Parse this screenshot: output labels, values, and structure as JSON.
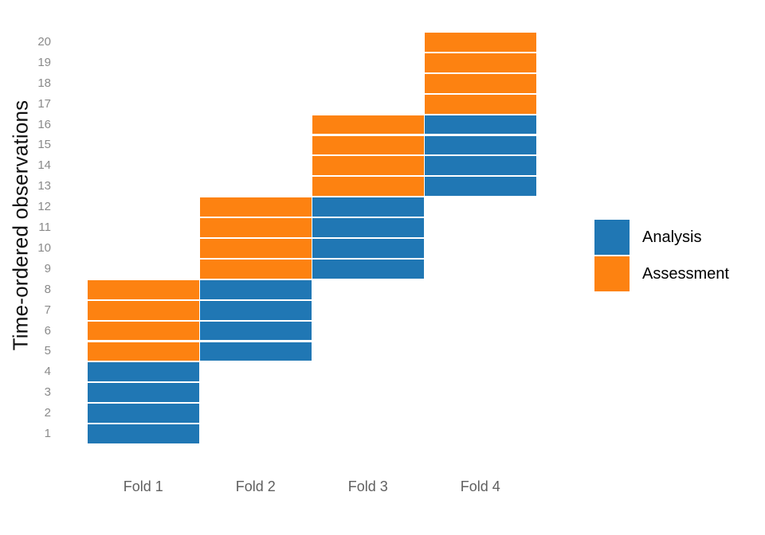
{
  "chart_data": {
    "type": "heatmap",
    "title": "",
    "xlabel": "",
    "ylabel": "Time-ordered observations",
    "categories": [
      "Fold 1",
      "Fold 2",
      "Fold 3",
      "Fold 4"
    ],
    "y_ticks": [
      "1",
      "2",
      "3",
      "4",
      "5",
      "6",
      "7",
      "8",
      "9",
      "10",
      "11",
      "12",
      "13",
      "14",
      "15",
      "16",
      "17",
      "18",
      "19",
      "20"
    ],
    "n_observations": 20,
    "ylim": [
      1,
      20
    ],
    "grid": "off",
    "legend_position": "right",
    "legend": [
      {
        "label": "Analysis",
        "color": "#2077B4"
      },
      {
        "label": "Assessment",
        "color": "#FD8211"
      }
    ],
    "folds": [
      {
        "name": "Fold 1",
        "analysis": [
          1,
          2,
          3,
          4
        ],
        "assessment": [
          5,
          6,
          7,
          8
        ]
      },
      {
        "name": "Fold 2",
        "analysis": [
          5,
          6,
          7,
          8
        ],
        "assessment": [
          9,
          10,
          11,
          12
        ]
      },
      {
        "name": "Fold 3",
        "analysis": [
          9,
          10,
          11,
          12
        ],
        "assessment": [
          13,
          14,
          15,
          16
        ]
      },
      {
        "name": "Fold 4",
        "analysis": [
          13,
          14,
          15,
          16
        ],
        "assessment": [
          17,
          18,
          19,
          20
        ]
      }
    ]
  }
}
